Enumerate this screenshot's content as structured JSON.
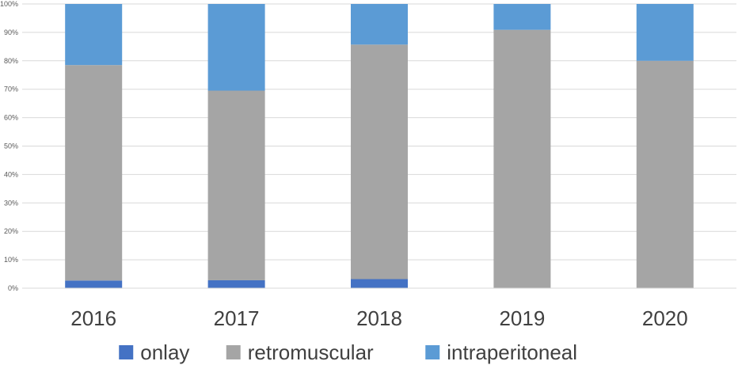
{
  "chart_data": {
    "type": "bar",
    "stacked": true,
    "categories": [
      "2016",
      "2017",
      "2018",
      "2019",
      "2020"
    ],
    "series": [
      {
        "name": "onlay",
        "color": "#4472c4",
        "values": [
          2.7,
          2.8,
          3.2,
          0,
          0
        ]
      },
      {
        "name": "retromuscular",
        "color": "#a5a5a5",
        "values": [
          75.8,
          66.7,
          82.5,
          90.9,
          80.0
        ]
      },
      {
        "name": "intraperitoneal",
        "color": "#5b9bd5",
        "values": [
          21.5,
          30.5,
          14.3,
          9.1,
          20.0
        ]
      }
    ],
    "yticks": [
      "0%",
      "10%",
      "20%",
      "30%",
      "40%",
      "50%",
      "60%",
      "70%",
      "80%",
      "90%",
      "100%"
    ],
    "ylim": [
      0,
      100
    ],
    "grid": true,
    "legend_position": "bottom",
    "title": "",
    "xlabel": "",
    "ylabel": ""
  }
}
